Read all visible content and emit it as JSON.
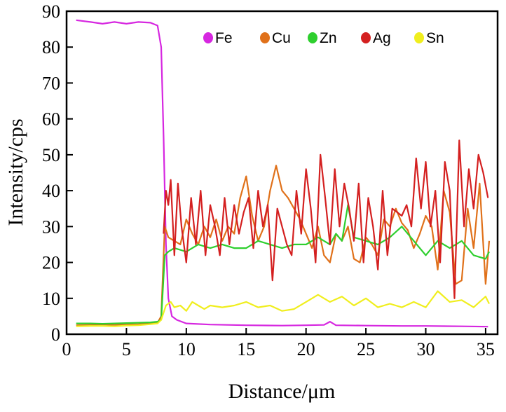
{
  "chart_data": {
    "type": "line",
    "title": "",
    "xlabel": "Distance/μm",
    "ylabel": "Intensity/cps",
    "xlim": [
      0,
      36
    ],
    "ylim": [
      0,
      90
    ],
    "xticks": [
      0,
      5,
      10,
      15,
      20,
      25,
      30,
      35
    ],
    "yticks": [
      0,
      10,
      20,
      30,
      40,
      50,
      60,
      70,
      80,
      90
    ],
    "grid": false,
    "legend_position": "top-right",
    "series": [
      {
        "name": "Fe",
        "color": "#D627E0",
        "x": [
          0.8,
          2,
          3,
          4,
          5,
          6,
          7,
          7.6,
          7.9,
          8.1,
          8.3,
          8.5,
          8.8,
          9.2,
          10,
          12,
          15,
          18,
          20,
          21.5,
          22,
          22.5,
          25,
          28,
          30,
          33,
          35.2
        ],
        "y": [
          87.5,
          87,
          86.5,
          87,
          86.5,
          87,
          86.8,
          86,
          80,
          55,
          25,
          10,
          5,
          4,
          3,
          2.7,
          2.5,
          2.4,
          2.5,
          2.6,
          3.5,
          2.5,
          2.4,
          2.3,
          2.3,
          2.2,
          2.1
        ]
      },
      {
        "name": "Cu",
        "color": "#E0711A",
        "x": [
          0.8,
          2,
          3,
          4,
          5,
          6,
          7,
          7.6,
          7.9,
          8.2,
          8.5,
          9,
          9.5,
          10,
          10.5,
          11,
          11.5,
          12,
          12.5,
          13,
          13.5,
          14,
          14.5,
          15,
          15.5,
          16,
          16.5,
          17,
          17.5,
          18,
          18.5,
          19,
          19.5,
          20,
          20.5,
          21,
          21.5,
          22,
          22.5,
          23,
          23.5,
          24,
          24.5,
          25,
          25.5,
          26,
          26.5,
          27,
          27.5,
          28,
          28.5,
          29,
          29.5,
          30,
          30.5,
          31,
          31.5,
          32,
          32.5,
          33,
          33.5,
          34,
          34.5,
          35,
          35.3
        ],
        "y": [
          2.5,
          2.6,
          2.7,
          2.6,
          2.7,
          2.8,
          3,
          3.2,
          5,
          30,
          27,
          26,
          25,
          32,
          28,
          25,
          30,
          27,
          32,
          26,
          30,
          28,
          38,
          44,
          33,
          26,
          30,
          40,
          47,
          40,
          38,
          35,
          32,
          28,
          24,
          30,
          22,
          20,
          28,
          26,
          30,
          21,
          20,
          27,
          25,
          22,
          32,
          30,
          35,
          31,
          29,
          24,
          28,
          33,
          30,
          18,
          40,
          34,
          14,
          15,
          35,
          24,
          42,
          14,
          26
        ]
      },
      {
        "name": "Zn",
        "color": "#2ECF2E",
        "x": [
          0.8,
          2,
          3,
          4,
          5,
          6,
          7,
          7.6,
          7.9,
          8.2,
          8.5,
          9,
          10,
          11,
          12,
          13,
          14,
          15,
          16,
          17,
          18,
          19,
          20,
          21,
          22,
          22.5,
          23,
          23.5,
          24,
          25,
          26,
          27,
          28,
          29,
          30,
          31,
          32,
          33,
          34,
          35,
          35.3
        ],
        "y": [
          3,
          3,
          2.9,
          3,
          3.1,
          3.2,
          3.3,
          3.5,
          4,
          22,
          23,
          24,
          23,
          25,
          24,
          25,
          24,
          24,
          26,
          25,
          24,
          25,
          25,
          27,
          25,
          28,
          26,
          36,
          27,
          26,
          25,
          27,
          30,
          26,
          22,
          26,
          24,
          26,
          22,
          21,
          23
        ]
      },
      {
        "name": "Ag",
        "color": "#D42020",
        "x": [
          8.1,
          8.3,
          8.5,
          8.7,
          9,
          9.3,
          9.6,
          10,
          10.4,
          10.8,
          11.2,
          11.6,
          12,
          12.4,
          12.8,
          13.2,
          13.6,
          14,
          14.4,
          14.8,
          15.2,
          15.6,
          16,
          16.4,
          16.8,
          17.2,
          17.6,
          18,
          18.4,
          18.8,
          19.2,
          19.6,
          20,
          20.4,
          20.8,
          21.2,
          21.6,
          22,
          22.4,
          22.8,
          23.2,
          23.6,
          24,
          24.4,
          24.8,
          25.2,
          25.6,
          26,
          26.4,
          26.8,
          27.2,
          27.6,
          28,
          28.4,
          28.8,
          29.2,
          29.6,
          30,
          30.4,
          30.8,
          31.2,
          31.6,
          32,
          32.4,
          32.8,
          33.2,
          33.6,
          34,
          34.4,
          34.8,
          35.2
        ],
        "y": [
          28,
          40,
          36,
          43,
          22,
          42,
          30,
          20,
          38,
          25,
          40,
          22,
          36,
          30,
          22,
          38,
          25,
          36,
          28,
          34,
          38,
          24,
          40,
          30,
          36,
          15,
          35,
          30,
          25,
          22,
          40,
          28,
          46,
          35,
          20,
          50,
          38,
          25,
          46,
          30,
          42,
          35,
          26,
          42,
          20,
          38,
          30,
          18,
          40,
          22,
          35,
          34,
          33,
          36,
          30,
          49,
          35,
          48,
          30,
          40,
          20,
          48,
          40,
          10,
          54,
          30,
          46,
          35,
          50,
          45,
          38
        ]
      },
      {
        "name": "Sn",
        "color": "#F0EE1E",
        "x": [
          0.8,
          2,
          3,
          4,
          5,
          6,
          7,
          7.6,
          7.9,
          8.3,
          8.7,
          9,
          9.5,
          10,
          10.5,
          11,
          11.5,
          12,
          13,
          14,
          15,
          16,
          17,
          18,
          19,
          20,
          21,
          22,
          23,
          24,
          25,
          26,
          27,
          28,
          29,
          30,
          31,
          32,
          33,
          34,
          35,
          35.3
        ],
        "y": [
          2.2,
          2.3,
          2.3,
          2.2,
          2.4,
          2.5,
          2.8,
          3,
          4,
          8,
          9,
          7.5,
          8,
          6.5,
          9,
          8,
          7,
          8,
          7.5,
          8,
          9,
          7.5,
          8,
          6.5,
          7,
          9,
          11,
          9,
          10.5,
          8,
          10,
          7.5,
          8.5,
          7.5,
          9,
          7.5,
          12,
          9,
          9.5,
          7.5,
          10.5,
          8.5
        ]
      }
    ]
  }
}
